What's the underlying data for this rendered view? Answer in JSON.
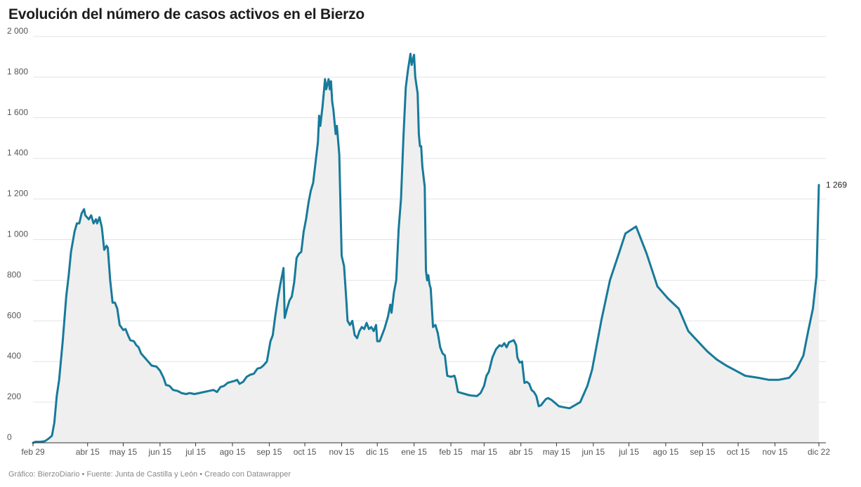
{
  "header": {
    "title": "Evolución del número de casos activos en el Bierzo"
  },
  "footer": {
    "text": "Gráfico: BierzoDiario • Fuente: Junta de Castilla y León • Creado con Datawrapper"
  },
  "chart_data": {
    "type": "area",
    "title": "Evolución del número de casos activos en el Bierzo",
    "xlabel": "",
    "ylabel": "",
    "ylim": [
      0,
      2000
    ],
    "y_ticks": [
      0,
      200,
      400,
      600,
      800,
      1000,
      1200,
      1400,
      1600,
      1800,
      2000
    ],
    "y_tick_labels": [
      "0",
      "200",
      "400",
      "600",
      "800",
      "1 000",
      "1 200",
      "1 400",
      "1 600",
      "1 800",
      "2 000"
    ],
    "x_ticks": [
      {
        "label": "feb 29",
        "date": "2020-02-29"
      },
      {
        "label": "abr 15",
        "date": "2020-04-15"
      },
      {
        "label": "may 15",
        "date": "2020-05-15"
      },
      {
        "label": "jun 15",
        "date": "2020-06-15"
      },
      {
        "label": "jul 15",
        "date": "2020-07-15"
      },
      {
        "label": "ago 15",
        "date": "2020-08-15"
      },
      {
        "label": "sep 15",
        "date": "2020-09-15"
      },
      {
        "label": "oct 15",
        "date": "2020-10-15"
      },
      {
        "label": "nov 15",
        "date": "2020-11-15"
      },
      {
        "label": "dic 15",
        "date": "2020-12-15"
      },
      {
        "label": "ene 15",
        "date": "2021-01-15"
      },
      {
        "label": "feb 15",
        "date": "2021-02-15"
      },
      {
        "label": "mar 15",
        "date": "2021-03-15"
      },
      {
        "label": "abr 15",
        "date": "2021-04-15"
      },
      {
        "label": "may 15",
        "date": "2021-05-15"
      },
      {
        "label": "jun 15",
        "date": "2021-06-15"
      },
      {
        "label": "jul 15",
        "date": "2021-07-15"
      },
      {
        "label": "ago 15",
        "date": "2021-08-15"
      },
      {
        "label": "sep 15",
        "date": "2021-09-15"
      },
      {
        "label": "oct 15",
        "date": "2021-10-15"
      },
      {
        "label": "nov 15",
        "date": "2021-11-15"
      },
      {
        "label": "dic 22",
        "date": "2021-12-22"
      }
    ],
    "last_value_label": "1 269",
    "line_color": "#177a9a",
    "fill_color": "#efefef",
    "grid": true,
    "series": [
      {
        "points": [
          [
            "2020-02-29",
            0
          ],
          [
            "2020-03-02",
            5
          ],
          [
            "2020-03-06",
            5
          ],
          [
            "2020-03-10",
            8
          ],
          [
            "2020-03-13",
            20
          ],
          [
            "2020-03-16",
            35
          ],
          [
            "2020-03-18",
            100
          ],
          [
            "2020-03-20",
            230
          ],
          [
            "2020-03-22",
            310
          ],
          [
            "2020-03-25",
            500
          ],
          [
            "2020-03-28",
            720
          ],
          [
            "2020-03-30",
            820
          ],
          [
            "2020-04-01",
            940
          ],
          [
            "2020-04-04",
            1040
          ],
          [
            "2020-04-06",
            1080
          ],
          [
            "2020-04-08",
            1080
          ],
          [
            "2020-04-10",
            1130
          ],
          [
            "2020-04-12",
            1150
          ],
          [
            "2020-04-13",
            1120
          ],
          [
            "2020-04-16",
            1100
          ],
          [
            "2020-04-18",
            1120
          ],
          [
            "2020-04-20",
            1080
          ],
          [
            "2020-04-22",
            1100
          ],
          [
            "2020-04-23",
            1080
          ],
          [
            "2020-04-25",
            1110
          ],
          [
            "2020-04-27",
            1060
          ],
          [
            "2020-04-29",
            950
          ],
          [
            "2020-05-01",
            970
          ],
          [
            "2020-05-02",
            960
          ],
          [
            "2020-05-04",
            800
          ],
          [
            "2020-05-06",
            690
          ],
          [
            "2020-05-08",
            690
          ],
          [
            "2020-05-10",
            660
          ],
          [
            "2020-05-12",
            580
          ],
          [
            "2020-05-15",
            555
          ],
          [
            "2020-05-17",
            560
          ],
          [
            "2020-05-19",
            530
          ],
          [
            "2020-05-21",
            505
          ],
          [
            "2020-05-24",
            500
          ],
          [
            "2020-05-26",
            480
          ],
          [
            "2020-05-28",
            470
          ],
          [
            "2020-05-30",
            440
          ],
          [
            "2020-06-02",
            420
          ],
          [
            "2020-06-05",
            400
          ],
          [
            "2020-06-08",
            380
          ],
          [
            "2020-06-12",
            375
          ],
          [
            "2020-06-15",
            355
          ],
          [
            "2020-06-18",
            320
          ],
          [
            "2020-06-20",
            285
          ],
          [
            "2020-06-23",
            280
          ],
          [
            "2020-06-26",
            260
          ],
          [
            "2020-06-30",
            255
          ],
          [
            "2020-07-03",
            245
          ],
          [
            "2020-07-07",
            240
          ],
          [
            "2020-07-10",
            245
          ],
          [
            "2020-07-14",
            240
          ],
          [
            "2020-07-18",
            245
          ],
          [
            "2020-07-22",
            250
          ],
          [
            "2020-07-26",
            255
          ],
          [
            "2020-07-30",
            260
          ],
          [
            "2020-08-02",
            250
          ],
          [
            "2020-08-05",
            275
          ],
          [
            "2020-08-08",
            280
          ],
          [
            "2020-08-11",
            295
          ],
          [
            "2020-08-14",
            300
          ],
          [
            "2020-08-17",
            305
          ],
          [
            "2020-08-19",
            310
          ],
          [
            "2020-08-21",
            290
          ],
          [
            "2020-08-24",
            300
          ],
          [
            "2020-08-27",
            325
          ],
          [
            "2020-08-30",
            335
          ],
          [
            "2020-09-02",
            340
          ],
          [
            "2020-09-05",
            365
          ],
          [
            "2020-09-08",
            370
          ],
          [
            "2020-09-10",
            380
          ],
          [
            "2020-09-13",
            400
          ],
          [
            "2020-09-16",
            500
          ],
          [
            "2020-09-18",
            530
          ],
          [
            "2020-09-20",
            620
          ],
          [
            "2020-09-22",
            700
          ],
          [
            "2020-09-24",
            770
          ],
          [
            "2020-09-26",
            830
          ],
          [
            "2020-09-27",
            860
          ],
          [
            "2020-09-28",
            615
          ],
          [
            "2020-09-30",
            660
          ],
          [
            "2020-10-02",
            700
          ],
          [
            "2020-10-04",
            720
          ],
          [
            "2020-10-06",
            790
          ],
          [
            "2020-10-08",
            910
          ],
          [
            "2020-10-10",
            930
          ],
          [
            "2020-10-12",
            940
          ],
          [
            "2020-10-14",
            1040
          ],
          [
            "2020-10-16",
            1100
          ],
          [
            "2020-10-18",
            1180
          ],
          [
            "2020-10-20",
            1240
          ],
          [
            "2020-10-22",
            1280
          ],
          [
            "2020-10-24",
            1380
          ],
          [
            "2020-10-26",
            1480
          ],
          [
            "2020-10-27",
            1610
          ],
          [
            "2020-10-28",
            1560
          ],
          [
            "2020-10-30",
            1660
          ],
          [
            "2020-11-01",
            1790
          ],
          [
            "2020-11-02",
            1740
          ],
          [
            "2020-11-04",
            1790
          ],
          [
            "2020-11-05",
            1740
          ],
          [
            "2020-11-06",
            1780
          ],
          [
            "2020-11-07",
            1680
          ],
          [
            "2020-11-08",
            1640
          ],
          [
            "2020-11-10",
            1520
          ],
          [
            "2020-11-11",
            1560
          ],
          [
            "2020-11-13",
            1420
          ],
          [
            "2020-11-15",
            920
          ],
          [
            "2020-11-17",
            870
          ],
          [
            "2020-11-19",
            700
          ],
          [
            "2020-11-20",
            600
          ],
          [
            "2020-11-22",
            580
          ],
          [
            "2020-11-24",
            600
          ],
          [
            "2020-11-26",
            530
          ],
          [
            "2020-11-28",
            515
          ],
          [
            "2020-11-30",
            550
          ],
          [
            "2020-12-02",
            570
          ],
          [
            "2020-12-04",
            560
          ],
          [
            "2020-12-06",
            590
          ],
          [
            "2020-12-08",
            560
          ],
          [
            "2020-12-10",
            570
          ],
          [
            "2020-12-12",
            550
          ],
          [
            "2020-12-14",
            580
          ],
          [
            "2020-12-15",
            500
          ],
          [
            "2020-12-17",
            500
          ],
          [
            "2020-12-19",
            530
          ],
          [
            "2020-12-21",
            560
          ],
          [
            "2020-12-24",
            620
          ],
          [
            "2020-12-26",
            680
          ],
          [
            "2020-12-27",
            640
          ],
          [
            "2020-12-29",
            740
          ],
          [
            "2020-12-31",
            800
          ],
          [
            "2021-01-02",
            1050
          ],
          [
            "2021-01-04",
            1200
          ],
          [
            "2021-01-06",
            1500
          ],
          [
            "2021-01-08",
            1750
          ],
          [
            "2021-01-10",
            1840
          ],
          [
            "2021-01-12",
            1915
          ],
          [
            "2021-01-13",
            1860
          ],
          [
            "2021-01-15",
            1910
          ],
          [
            "2021-01-16",
            1800
          ],
          [
            "2021-01-18",
            1720
          ],
          [
            "2021-01-19",
            1520
          ],
          [
            "2021-01-20",
            1460
          ],
          [
            "2021-01-21",
            1460
          ],
          [
            "2021-01-22",
            1360
          ],
          [
            "2021-01-24",
            1260
          ],
          [
            "2021-01-25",
            850
          ],
          [
            "2021-01-26",
            800
          ],
          [
            "2021-01-27",
            825
          ],
          [
            "2021-01-28",
            780
          ],
          [
            "2021-01-29",
            760
          ],
          [
            "2021-01-31",
            570
          ],
          [
            "2021-02-02",
            580
          ],
          [
            "2021-02-04",
            540
          ],
          [
            "2021-02-06",
            470
          ],
          [
            "2021-02-08",
            440
          ],
          [
            "2021-02-10",
            430
          ],
          [
            "2021-02-12",
            330
          ],
          [
            "2021-02-15",
            325
          ],
          [
            "2021-02-18",
            330
          ],
          [
            "2021-02-19",
            310
          ],
          [
            "2021-02-21",
            250
          ],
          [
            "2021-02-24",
            245
          ],
          [
            "2021-02-27",
            240
          ],
          [
            "2021-03-02",
            235
          ],
          [
            "2021-03-05",
            232
          ],
          [
            "2021-03-09",
            230
          ],
          [
            "2021-03-12",
            245
          ],
          [
            "2021-03-15",
            280
          ],
          [
            "2021-03-17",
            330
          ],
          [
            "2021-03-19",
            350
          ],
          [
            "2021-03-22",
            420
          ],
          [
            "2021-03-25",
            460
          ],
          [
            "2021-03-28",
            480
          ],
          [
            "2021-03-30",
            475
          ],
          [
            "2021-04-01",
            490
          ],
          [
            "2021-04-03",
            470
          ],
          [
            "2021-04-05",
            495
          ],
          [
            "2021-04-07",
            500
          ],
          [
            "2021-04-09",
            505
          ],
          [
            "2021-04-11",
            480
          ],
          [
            "2021-04-12",
            420
          ],
          [
            "2021-04-14",
            395
          ],
          [
            "2021-04-16",
            400
          ],
          [
            "2021-04-18",
            295
          ],
          [
            "2021-04-20",
            300
          ],
          [
            "2021-04-22",
            290
          ],
          [
            "2021-04-24",
            260
          ],
          [
            "2021-04-26",
            250
          ],
          [
            "2021-04-28",
            230
          ],
          [
            "2021-04-30",
            180
          ],
          [
            "2021-05-02",
            185
          ],
          [
            "2021-05-04",
            200
          ],
          [
            "2021-05-06",
            215
          ],
          [
            "2021-05-08",
            220
          ],
          [
            "2021-05-11",
            210
          ],
          [
            "2021-05-14",
            195
          ],
          [
            "2021-05-17",
            180
          ],
          [
            "2021-05-21",
            175
          ],
          [
            "2021-05-26",
            170
          ],
          [
            "2021-06-04",
            200
          ],
          [
            "2021-06-10",
            280
          ],
          [
            "2021-06-14",
            360
          ],
          [
            "2021-06-22",
            610
          ],
          [
            "2021-06-29",
            800
          ],
          [
            "2021-07-07",
            940
          ],
          [
            "2021-07-12",
            1030
          ],
          [
            "2021-07-21",
            1065
          ],
          [
            "2021-07-30",
            930
          ],
          [
            "2021-08-08",
            770
          ],
          [
            "2021-08-17",
            710
          ],
          [
            "2021-08-26",
            660
          ],
          [
            "2021-09-03",
            550
          ],
          [
            "2021-09-11",
            500
          ],
          [
            "2021-09-19",
            450
          ],
          [
            "2021-09-27",
            410
          ],
          [
            "2021-10-05",
            380
          ],
          [
            "2021-10-13",
            355
          ],
          [
            "2021-10-21",
            330
          ],
          [
            "2021-11-01",
            320
          ],
          [
            "2021-11-10",
            310
          ],
          [
            "2021-11-18",
            310
          ],
          [
            "2021-11-27",
            320
          ],
          [
            "2021-12-03",
            360
          ],
          [
            "2021-12-09",
            430
          ],
          [
            "2021-12-13",
            550
          ],
          [
            "2021-12-17",
            660
          ],
          [
            "2021-12-20",
            820
          ],
          [
            "2021-12-22",
            1269
          ]
        ]
      }
    ]
  }
}
